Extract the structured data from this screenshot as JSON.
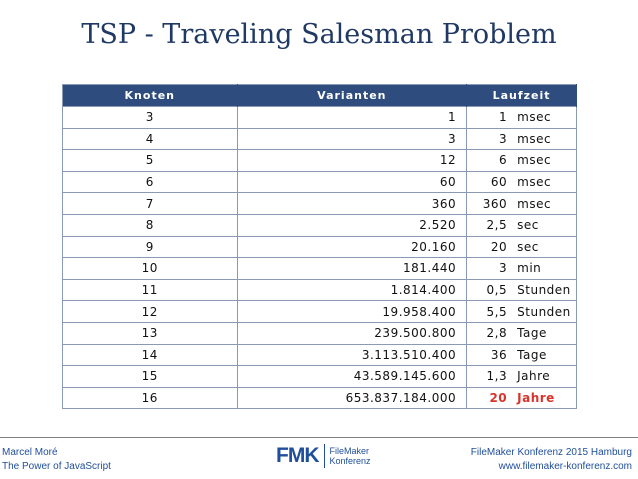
{
  "title": "TSP - Traveling Salesman Problem",
  "table": {
    "headers": [
      "Knoten",
      "Varianten",
      "Laufzeit"
    ],
    "rows": [
      {
        "knoten": "3",
        "varianten": "1",
        "laufzeit": "1",
        "unit": "msec"
      },
      {
        "knoten": "4",
        "varianten": "3",
        "laufzeit": "3",
        "unit": "msec"
      },
      {
        "knoten": "5",
        "varianten": "12",
        "laufzeit": "6",
        "unit": "msec"
      },
      {
        "knoten": "6",
        "varianten": "60",
        "laufzeit": "60",
        "unit": "msec"
      },
      {
        "knoten": "7",
        "varianten": "360",
        "laufzeit": "360",
        "unit": "msec"
      },
      {
        "knoten": "8",
        "varianten": "2.520",
        "laufzeit": "2,5",
        "unit": "sec"
      },
      {
        "knoten": "9",
        "varianten": "20.160",
        "laufzeit": "20",
        "unit": "sec"
      },
      {
        "knoten": "10",
        "varianten": "181.440",
        "laufzeit": "3",
        "unit": "min"
      },
      {
        "knoten": "11",
        "varianten": "1.814.400",
        "laufzeit": "0,5",
        "unit": "Stunden"
      },
      {
        "knoten": "12",
        "varianten": "19.958.400",
        "laufzeit": "5,5",
        "unit": "Stunden"
      },
      {
        "knoten": "13",
        "varianten": "239.500.800",
        "laufzeit": "2,8",
        "unit": "Tage"
      },
      {
        "knoten": "14",
        "varianten": "3.113.510.400",
        "laufzeit": "36",
        "unit": "Tage"
      },
      {
        "knoten": "15",
        "varianten": "43.589.145.600",
        "laufzeit": "1,3",
        "unit": "Jahre"
      },
      {
        "knoten": "16",
        "varianten": "653.837.184.000",
        "laufzeit": "20",
        "unit": "Jahre",
        "highlight": true
      }
    ]
  },
  "colors": {
    "title": "#1f3864",
    "header_bg": "#2e4c7e",
    "highlight": "#d9342b",
    "footer": "#1f4e9a"
  },
  "footer": {
    "left_line1": "Marcel Moré",
    "left_line2": "The Power of JavaScript",
    "logo_mark": "FMK",
    "logo_line1": "FileMaker",
    "logo_line2": "Konferenz",
    "right_line1": "FileMaker Konferenz 2015 Hamburg",
    "right_line2": "www.filemaker-konferenz.com"
  }
}
